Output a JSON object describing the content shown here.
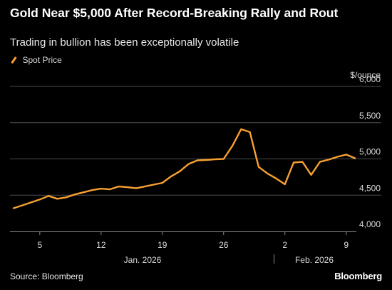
{
  "header": {
    "title": "Gold Near $5,000 After Record-Breaking Rally and Rout",
    "subtitle": "Trading in bullion has been exceptionally volatile"
  },
  "footer": {
    "source": "Source: Bloomberg",
    "brand": "Bloomberg"
  },
  "colors": {
    "background": "#000000",
    "series": "#f7a032",
    "grid": "#4d4d4d",
    "text": "#d9d9d9"
  },
  "chart_data": {
    "type": "line",
    "unit_label": "$/ounce",
    "legend_position": "top-left",
    "grid": true,
    "ylim": [
      4000,
      6000
    ],
    "y_ticks": [
      {
        "value": 4000,
        "label": "4,000"
      },
      {
        "value": 4500,
        "label": "4,500"
      },
      {
        "value": 5000,
        "label": "5,000"
      },
      {
        "value": 5500,
        "label": "5,500"
      },
      {
        "value": 6000,
        "label": "6,000"
      }
    ],
    "xlim": [
      "2026-01-02",
      "2026-02-10"
    ],
    "x_ticks": [
      {
        "date": "2026-01-05",
        "label": "5"
      },
      {
        "date": "2026-01-12",
        "label": "12"
      },
      {
        "date": "2026-01-19",
        "label": "19"
      },
      {
        "date": "2026-01-26",
        "label": "26"
      },
      {
        "date": "2026-02-02",
        "label": "2"
      },
      {
        "date": "2026-02-09",
        "label": "9"
      }
    ],
    "month_labels": [
      {
        "label": "Jan. 2026"
      },
      {
        "label": "Feb. 2026"
      }
    ],
    "series": [
      {
        "name": "Spot Price",
        "points": [
          {
            "x": "2026-01-02",
            "y": 4320
          },
          {
            "x": "2026-01-03",
            "y": 4360
          },
          {
            "x": "2026-01-04",
            "y": 4400
          },
          {
            "x": "2026-01-05",
            "y": 4440
          },
          {
            "x": "2026-01-06",
            "y": 4490
          },
          {
            "x": "2026-01-07",
            "y": 4450
          },
          {
            "x": "2026-01-08",
            "y": 4470
          },
          {
            "x": "2026-01-09",
            "y": 4510
          },
          {
            "x": "2026-01-10",
            "y": 4540
          },
          {
            "x": "2026-01-11",
            "y": 4570
          },
          {
            "x": "2026-01-12",
            "y": 4590
          },
          {
            "x": "2026-01-13",
            "y": 4580
          },
          {
            "x": "2026-01-14",
            "y": 4620
          },
          {
            "x": "2026-01-15",
            "y": 4610
          },
          {
            "x": "2026-01-16",
            "y": 4595
          },
          {
            "x": "2026-01-17",
            "y": 4620
          },
          {
            "x": "2026-01-18",
            "y": 4645
          },
          {
            "x": "2026-01-19",
            "y": 4670
          },
          {
            "x": "2026-01-20",
            "y": 4760
          },
          {
            "x": "2026-01-21",
            "y": 4830
          },
          {
            "x": "2026-01-22",
            "y": 4930
          },
          {
            "x": "2026-01-23",
            "y": 4980
          },
          {
            "x": "2026-01-24",
            "y": 4985
          },
          {
            "x": "2026-01-25",
            "y": 4995
          },
          {
            "x": "2026-01-26",
            "y": 5000
          },
          {
            "x": "2026-01-27",
            "y": 5180
          },
          {
            "x": "2026-01-28",
            "y": 5410
          },
          {
            "x": "2026-01-29",
            "y": 5370
          },
          {
            "x": "2026-01-30",
            "y": 4890
          },
          {
            "x": "2026-01-31",
            "y": 4800
          },
          {
            "x": "2026-02-01",
            "y": 4730
          },
          {
            "x": "2026-02-02",
            "y": 4650
          },
          {
            "x": "2026-02-03",
            "y": 4950
          },
          {
            "x": "2026-02-04",
            "y": 4960
          },
          {
            "x": "2026-02-05",
            "y": 4780
          },
          {
            "x": "2026-02-06",
            "y": 4960
          },
          {
            "x": "2026-02-07",
            "y": 4990
          },
          {
            "x": "2026-02-08",
            "y": 5030
          },
          {
            "x": "2026-02-09",
            "y": 5060
          },
          {
            "x": "2026-02-10",
            "y": 5010
          }
        ]
      }
    ]
  }
}
